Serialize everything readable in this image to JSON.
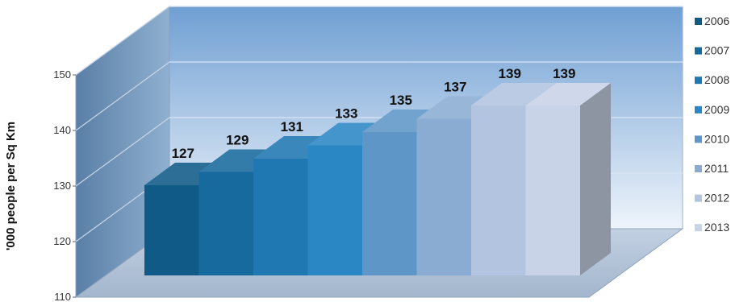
{
  "chart_data": {
    "type": "bar",
    "title": "",
    "xlabel": "",
    "ylabel": "'000 people per Sq Km",
    "ylim": [
      110,
      150
    ],
    "yticks": [
      110,
      120,
      130,
      140,
      150
    ],
    "grid": true,
    "legend_position": "right",
    "series": [
      {
        "name": "2006",
        "value": 127,
        "color": "#0f5a86"
      },
      {
        "name": "2007",
        "value": 129,
        "color": "#176a9e"
      },
      {
        "name": "2008",
        "value": 131,
        "color": "#1f78b2"
      },
      {
        "name": "2009",
        "value": 133,
        "color": "#2b86c4"
      },
      {
        "name": "2010",
        "value": 135,
        "color": "#5f96c8"
      },
      {
        "name": "2011",
        "value": 137,
        "color": "#8aacd2"
      },
      {
        "name": "2012",
        "value": 139,
        "color": "#b2c4e0"
      },
      {
        "name": "2013",
        "value": 139,
        "color": "#c9d3e8"
      }
    ]
  }
}
